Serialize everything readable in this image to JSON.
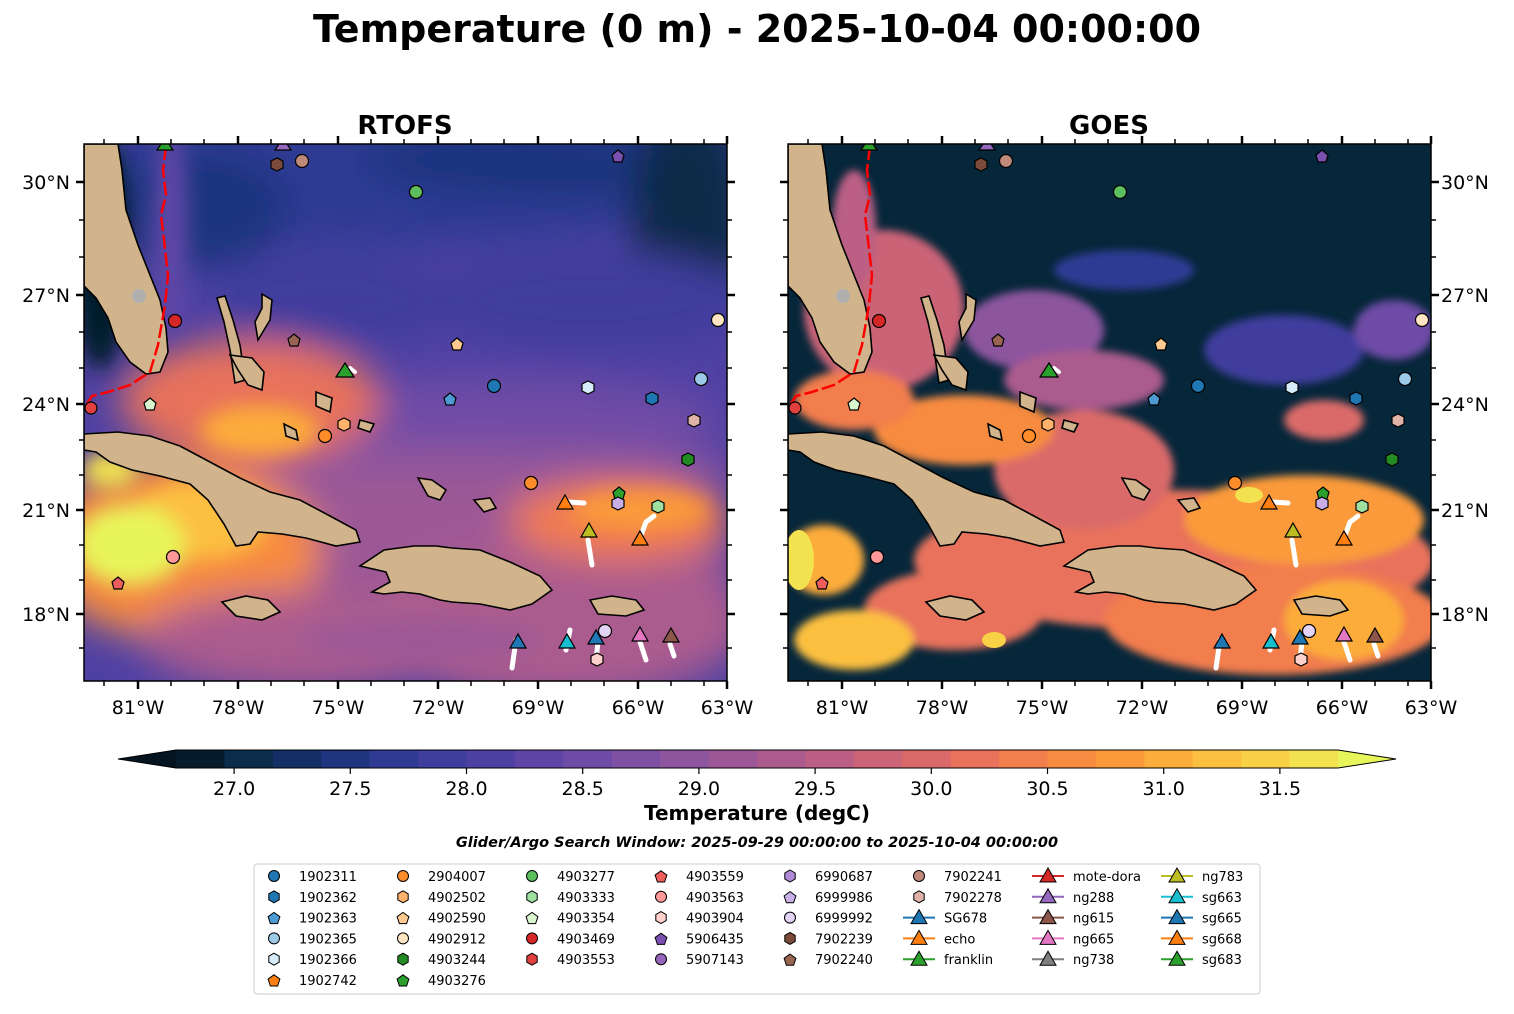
{
  "figure": {
    "title": "Temperature (0 m) - 2025-10-04 00:00:00",
    "subtitle": "Glider/Argo Search Window: 2025-09-29 00:00:00 to 2025-10-04 00:00:00",
    "colorbar_label": "Temperature (degC)",
    "colorbar_ticks": [
      "27.0",
      "27.5",
      "28.0",
      "28.5",
      "29.0",
      "29.5",
      "30.0",
      "30.5",
      "31.0",
      "31.5"
    ]
  },
  "colors": {
    "land": "#d2b48c",
    "cold": "#06263a",
    "gulf_stream_track": "#ff0000",
    "glider_track": "#ffffff"
  },
  "chart_data": [
    {
      "type": "heatmap",
      "title": "RTOFS",
      "variable": "Temperature (degC)",
      "x_ticks": [
        "81°W",
        "78°W",
        "75°W",
        "72°W",
        "69°W",
        "66°W",
        "63°W"
      ],
      "y_ticks": [
        "30°N",
        "27°N",
        "24°N",
        "21°N",
        "18°N"
      ],
      "xlim": [
        -82.4,
        -63
      ],
      "ylim": [
        16.1,
        31.1
      ],
      "value_range": [
        26.9,
        31.8
      ]
    },
    {
      "type": "heatmap",
      "title": "GOES",
      "variable": "Temperature (degC)",
      "x_ticks": [
        "81°W",
        "78°W",
        "75°W",
        "72°W",
        "69°W",
        "66°W",
        "63°W"
      ],
      "y_ticks": [
        "30°N",
        "27°N",
        "24°N",
        "21°N",
        "18°N"
      ],
      "xlim": [
        -82.4,
        -63
      ],
      "ylim": [
        16.1,
        31.1
      ],
      "value_range": [
        26.9,
        31.8
      ]
    }
  ],
  "colorbar": {
    "min": 26.75,
    "max": 31.75,
    "colors": [
      "#061c2c",
      "#0b2c4a",
      "#142f66",
      "#1f3580",
      "#2f3a93",
      "#3f3d9e",
      "#4f41a3",
      "#5f46a6",
      "#6e4ba6",
      "#7d50a3",
      "#8d559e",
      "#9c5896",
      "#ab5b8e",
      "#bb5f84",
      "#cb6477",
      "#da6a69",
      "#e8725b",
      "#f27d4d",
      "#f78b41",
      "#fa9a3a",
      "#fcac3b",
      "#fcbf3f",
      "#f9d146",
      "#f2e24f"
    ],
    "under": "#041420",
    "over": "#e8f55a"
  },
  "legend": {
    "columns": [
      [
        {
          "label": "1902311",
          "shape": "circle",
          "color": "#1f77b4"
        },
        {
          "label": "1902362",
          "shape": "hexagon",
          "color": "#1f77b4"
        },
        {
          "label": "1902363",
          "shape": "pentagon",
          "color": "#4e9ad4"
        },
        {
          "label": "1902365",
          "shape": "circle",
          "color": "#9ecae9"
        },
        {
          "label": "1902366",
          "shape": "hexagon",
          "color": "#d6ecfa"
        },
        {
          "label": "1902742",
          "shape": "pentagon",
          "color": "#ff7f0e"
        }
      ],
      [
        {
          "label": "2904007",
          "shape": "circle",
          "color": "#ff8c2a"
        },
        {
          "label": "4902502",
          "shape": "hexagon",
          "color": "#ffb26b"
        },
        {
          "label": "4902590",
          "shape": "pentagon",
          "color": "#ffc98f"
        },
        {
          "label": "4902912",
          "shape": "circle",
          "color": "#ffe5c2"
        },
        {
          "label": "4903244",
          "shape": "hexagon",
          "color": "#238b23"
        },
        {
          "label": "4903276",
          "shape": "pentagon",
          "color": "#2ca02c"
        }
      ],
      [
        {
          "label": "4903277",
          "shape": "circle",
          "color": "#5dbe5d"
        },
        {
          "label": "4903333",
          "shape": "hexagon",
          "color": "#9fe09f"
        },
        {
          "label": "4903354",
          "shape": "pentagon",
          "color": "#d8f5d0"
        },
        {
          "label": "4903469",
          "shape": "circle",
          "color": "#d62728"
        },
        {
          "label": "4903553",
          "shape": "hexagon",
          "color": "#e0413f"
        }
      ],
      [
        {
          "label": "4903559",
          "shape": "pentagon",
          "color": "#ee5c5c"
        },
        {
          "label": "4903563",
          "shape": "circle",
          "color": "#ff9896"
        },
        {
          "label": "4903904",
          "shape": "hexagon",
          "color": "#ffd0cc"
        },
        {
          "label": "5906435",
          "shape": "pentagon",
          "color": "#7a4fb0"
        },
        {
          "label": "5907143",
          "shape": "circle",
          "color": "#9467bd"
        }
      ],
      [
        {
          "label": "6990687",
          "shape": "hexagon",
          "color": "#b08ad6"
        },
        {
          "label": "6999986",
          "shape": "pentagon",
          "color": "#c9aee8"
        },
        {
          "label": "6999992",
          "shape": "circle",
          "color": "#e3d3f5"
        },
        {
          "label": "7902239",
          "shape": "hexagon",
          "color": "#7b4a3a"
        },
        {
          "label": "7902240",
          "shape": "pentagon",
          "color": "#9a6452"
        }
      ],
      [
        {
          "label": "7902241",
          "shape": "circle",
          "color": "#c08a7a"
        },
        {
          "label": "7902278",
          "shape": "hexagon",
          "color": "#e0b3a8"
        },
        {
          "label": "SG678",
          "shape": "triangle-line",
          "color": "#1f77b4"
        },
        {
          "label": "echo",
          "shape": "triangle-line",
          "color": "#ff7f0e"
        },
        {
          "label": "franklin",
          "shape": "triangle-line",
          "color": "#2ca02c"
        }
      ],
      [
        {
          "label": "mote-dora",
          "shape": "triangle-line",
          "color": "#d62728"
        },
        {
          "label": "ng288",
          "shape": "triangle-line",
          "color": "#9467bd"
        },
        {
          "label": "ng615",
          "shape": "triangle-line",
          "color": "#8c564b"
        },
        {
          "label": "ng665",
          "shape": "triangle-line",
          "color": "#e377c2"
        },
        {
          "label": "ng738",
          "shape": "triangle-line",
          "color": "#7f7f7f"
        }
      ],
      [
        {
          "label": "ng783",
          "shape": "triangle-line",
          "color": "#bcbd22"
        },
        {
          "label": "sg663",
          "shape": "triangle-line",
          "color": "#17becf"
        },
        {
          "label": "sg665",
          "shape": "triangle-line",
          "color": "#1f77b4"
        },
        {
          "label": "sg668",
          "shape": "triangle-line",
          "color": "#ff7f0e"
        },
        {
          "label": "sg683",
          "shape": "triangle-line",
          "color": "#2ca02c"
        }
      ]
    ]
  }
}
